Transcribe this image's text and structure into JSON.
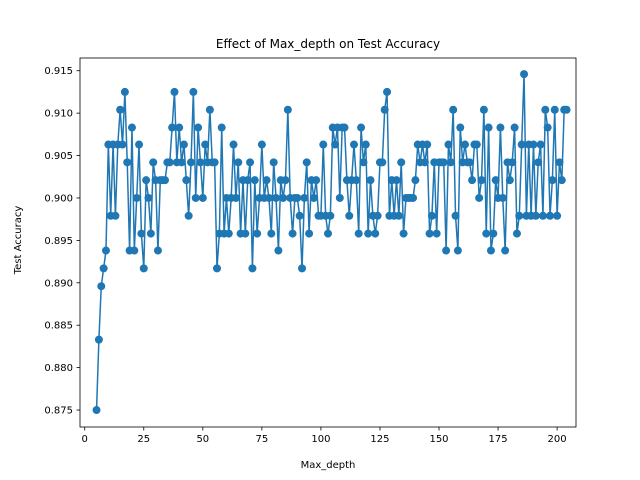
{
  "chart_data": {
    "type": "line",
    "title": "Effect of Max_depth on Test Accuracy",
    "xlabel": "Max_depth",
    "ylabel": "Test Accuracy",
    "xlim": [
      -2,
      208
    ],
    "ylim": [
      0.873,
      0.9165
    ],
    "xticks": [
      0,
      25,
      50,
      75,
      100,
      125,
      150,
      175,
      200
    ],
    "yticks": [
      0.875,
      0.88,
      0.885,
      0.89,
      0.895,
      0.9,
      0.905,
      0.91,
      0.915
    ],
    "ytick_labels": [
      "0.875",
      "0.880",
      "0.885",
      "0.890",
      "0.895",
      "0.900",
      "0.905",
      "0.910",
      "0.915"
    ],
    "grid": false,
    "color": "#1f77b4",
    "marker": "circle",
    "x_start": 5,
    "x_step": 1,
    "values": [
      0.875,
      0.8833,
      0.8896,
      0.8917,
      0.8938,
      0.9063,
      0.8979,
      0.9063,
      0.8979,
      0.9063,
      0.9104,
      0.9063,
      0.9125,
      0.9042,
      0.8938,
      0.9083,
      0.8938,
      0.9,
      0.9063,
      0.8958,
      0.8917,
      0.9021,
      0.9,
      0.8958,
      0.9042,
      0.9021,
      0.8938,
      0.9021,
      0.9021,
      0.9021,
      0.9042,
      0.9042,
      0.9083,
      0.9125,
      0.9042,
      0.9083,
      0.9042,
      0.9063,
      0.9021,
      0.8979,
      0.9042,
      0.9125,
      0.9,
      0.9083,
      0.9042,
      0.9,
      0.9063,
      0.9042,
      0.9104,
      0.9042,
      0.9042,
      0.8917,
      0.8958,
      0.9083,
      0.8958,
      0.9,
      0.8958,
      0.9,
      0.9063,
      0.9,
      0.9042,
      0.8958,
      0.9021,
      0.8958,
      0.9021,
      0.9042,
      0.8917,
      0.9021,
      0.8958,
      0.9,
      0.9063,
      0.9,
      0.9021,
      0.9,
      0.8958,
      0.9042,
      0.9,
      0.8938,
      0.9021,
      0.9,
      0.9021,
      0.9104,
      0.9,
      0.8958,
      0.9,
      0.9,
      0.8979,
      0.8917,
      0.9,
      0.9042,
      0.8958,
      0.9021,
      0.9,
      0.9021,
      0.8979,
      0.8979,
      0.9063,
      0.8979,
      0.8958,
      0.8979,
      0.9083,
      0.9063,
      0.9083,
      0.9,
      0.9083,
      0.9083,
      0.9021,
      0.8979,
      0.9021,
      0.9063,
      0.9021,
      0.8958,
      0.9083,
      0.9042,
      0.9063,
      0.8958,
      0.9021,
      0.8979,
      0.8958,
      0.8979,
      0.9042,
      0.9042,
      0.9104,
      0.9125,
      0.8979,
      0.9021,
      0.8979,
      0.9021,
      0.8979,
      0.9042,
      0.8958,
      0.9,
      0.9,
      0.9,
      0.9,
      0.9021,
      0.9063,
      0.9042,
      0.9063,
      0.9042,
      0.9063,
      0.8958,
      0.8979,
      0.9042,
      0.8958,
      0.9042,
      0.9042,
      0.9042,
      0.8938,
      0.9063,
      0.9042,
      0.9104,
      0.8979,
      0.8938,
      0.9083,
      0.9042,
      0.9063,
      0.9042,
      0.9042,
      0.9021,
      0.9063,
      0.9063,
      0.9,
      0.9021,
      0.9104,
      0.8958,
      0.9083,
      0.8938,
      0.8958,
      0.9021,
      0.9,
      0.9083,
      0.9,
      0.8938,
      0.9042,
      0.9021,
      0.9042,
      0.9083,
      0.8958,
      0.8979,
      0.9063,
      0.9146,
      0.8979,
      0.9063,
      0.8979,
      0.9063,
      0.8979,
      0.9042,
      0.9063,
      0.8979,
      0.9104,
      0.9083,
      0.8979,
      0.9021,
      0.9104,
      0.8979,
      0.9042,
      0.9021,
      0.9104,
      0.9104
    ]
  }
}
